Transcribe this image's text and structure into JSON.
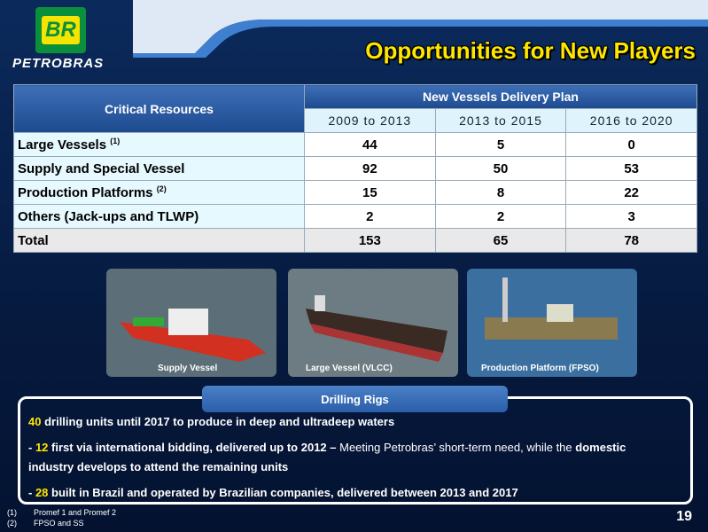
{
  "header": {
    "logo": "BR",
    "brand": "PETROBRAS",
    "title": "Opportunities for New Players"
  },
  "table": {
    "corner": "Critical Resources",
    "group_header": "New Vessels Delivery Plan",
    "columns": [
      "2009 to 2013",
      "2013 to 2015",
      "2016 to 2020"
    ],
    "rows": [
      {
        "label": "Large Vessels",
        "note": "(1)",
        "values": [
          44,
          5,
          0
        ]
      },
      {
        "label": "Supply and Special Vessel",
        "values": [
          92,
          50,
          53
        ]
      },
      {
        "label": "Production Platforms",
        "note": "(2)",
        "values": [
          15,
          8,
          22
        ]
      },
      {
        "label": "Others (Jack-ups and TLWP)",
        "values": [
          2,
          2,
          3
        ]
      },
      {
        "label": "Total",
        "values": [
          153,
          65,
          78
        ]
      }
    ]
  },
  "photos": [
    "Supply Vessel",
    "Large Vessel (VLCC)",
    "Production Platform  (FPSO)"
  ],
  "drilling": {
    "title": "Drilling Rigs",
    "bullets": [
      [
        {
          "text": "40",
          "style": "hl"
        },
        {
          "text": " drilling units until 2017 to produce in deep and ultradeep waters",
          "style": "b"
        }
      ],
      [
        {
          "text": "- ",
          "style": "b"
        },
        {
          "text": "12",
          "style": "hl"
        },
        {
          "text": " first via international bidding, delivered up to 2012 –",
          "style": "b"
        },
        {
          "text": "  Meeting Petrobras’ short-term need, while the",
          "style": "n"
        },
        {
          "text": " domestic industry develops to attend the remaining units",
          "style": "b"
        }
      ],
      [
        {
          "text": "-  ",
          "style": "b"
        },
        {
          "text": "28",
          "style": "hl"
        },
        {
          "text": " built in Brazil and operated by Brazilian companies, delivered between 2013 and 2017",
          "style": "b"
        }
      ]
    ]
  },
  "footnotes": [
    {
      "mark": "(1)",
      "text": "Promef 1 and Promef 2"
    },
    {
      "mark": "(2)",
      "text": "FPSO and SS"
    }
  ],
  "page_number": "19"
}
